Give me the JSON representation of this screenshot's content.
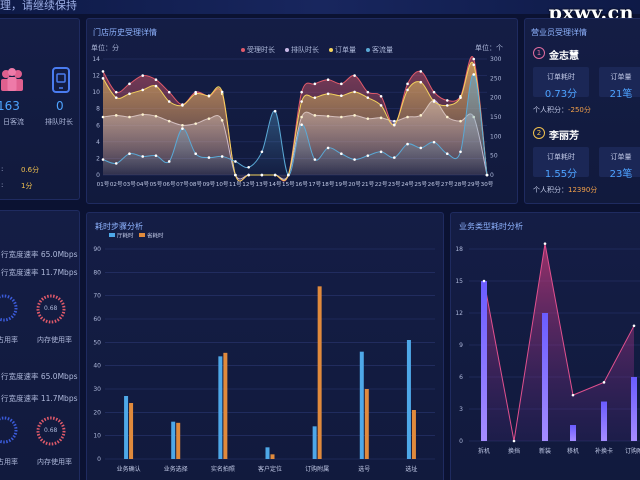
{
  "banner": {
    "text": "理，请继续保持"
  },
  "watermark": {
    "text": "pxwy.cn"
  },
  "left_top": {
    "big_value": "163",
    "big_label": "日客流",
    "queue_value": "0",
    "queue_label": "排队时长",
    "row1_value": "0.6分",
    "row2_value": "1分",
    "icons": {
      "people": "people-icon",
      "phone": "phone-icon"
    }
  },
  "history_chart": {
    "title": "门店历史受理详情",
    "left_unit": "单位：分",
    "right_unit": "单位：个",
    "legend": [
      "受理时长",
      "排队时长",
      "订单量",
      "客流量"
    ],
    "chart_data": {
      "type": "line",
      "categories": [
        "01号",
        "02号",
        "03号",
        "04号",
        "05号",
        "06号",
        "07号",
        "08号",
        "09号",
        "10号",
        "11号",
        "12号",
        "13号",
        "14号",
        "15号",
        "16号",
        "17号",
        "18号",
        "19号",
        "20号",
        "21号",
        "22号",
        "23号",
        "24号",
        "25号",
        "26号",
        "27号",
        "28号",
        "29号",
        "30号"
      ],
      "left_ylim": [
        0,
        14
      ],
      "left_ticks": [
        0,
        2,
        4,
        6,
        8,
        10,
        12,
        14
      ],
      "right_ylim": [
        0,
        300
      ],
      "right_ticks": [
        0,
        50,
        100,
        150,
        200,
        250,
        300
      ],
      "series": [
        {
          "name": "受理时长",
          "axis": "left",
          "color": "#e05a6a",
          "values": [
            12.5,
            10,
            11,
            12,
            11.5,
            10,
            8.5,
            10,
            9.5,
            9.8,
            0,
            0,
            0,
            0,
            0,
            10,
            11,
            11.5,
            11,
            12,
            10,
            9.5,
            6,
            11,
            12.5,
            10,
            9,
            9.5,
            14,
            0
          ]
        },
        {
          "name": "排队时长",
          "axis": "left",
          "color": "#c8b7e6",
          "values": [
            7,
            7.2,
            7,
            7.3,
            7.1,
            6.5,
            6,
            6.2,
            6.8,
            6.6,
            0,
            0,
            0,
            0,
            0,
            7,
            7.2,
            7.1,
            7,
            7.2,
            6.8,
            6.9,
            6.5,
            7,
            7.2,
            9,
            7,
            6.5,
            7,
            0
          ]
        },
        {
          "name": "订单量",
          "axis": "right",
          "color": "#f4d35e",
          "values": [
            250,
            200,
            210,
            220,
            230,
            190,
            180,
            210,
            205,
            215,
            0,
            0,
            0,
            0,
            0,
            190,
            200,
            210,
            205,
            215,
            200,
            180,
            130,
            220,
            240,
            190,
            180,
            200,
            285,
            0
          ]
        },
        {
          "name": "客流量",
          "axis": "right",
          "color": "#5aa9d6",
          "values": [
            40,
            30,
            55,
            48,
            50,
            35,
            120,
            55,
            45,
            48,
            35,
            20,
            60,
            165,
            0,
            130,
            40,
            70,
            55,
            40,
            50,
            60,
            45,
            80,
            70,
            85,
            55,
            60,
            260,
            0
          ]
        }
      ]
    }
  },
  "staff": {
    "title": "营业员受理详情",
    "people": [
      {
        "rank": "1",
        "name": "金志慧",
        "box1_label": "订单耗时",
        "box1_value": "0.73分",
        "box2_label": "订单量",
        "box2_value": "21笔",
        "score_label": "个人积分：",
        "score_value": "-250分"
      },
      {
        "rank": "2",
        "name": "李丽芳",
        "box1_label": "订单耗时",
        "box1_value": "1.55分",
        "box2_label": "订单量",
        "box2_value": "23笔",
        "score_label": "个人积分：",
        "score_value": "12390分"
      }
    ]
  },
  "network": {
    "group1": {
      "down": "行宽度速率 65.0Mbps",
      "up": "行宽度速率 11.7Mbps",
      "gauge_value": "0.68",
      "cpu_label": "占用率",
      "mem_label": "内存使用率"
    },
    "group2": {
      "down": "行宽度速率 65.0Mbps",
      "up": "行宽度速率 11.7Mbps",
      "gauge_value": "0.68",
      "cpu_label": "占用率",
      "mem_label": "内存使用率"
    }
  },
  "steps_chart": {
    "title": "耗时步骤分析",
    "chart_data": {
      "type": "bar",
      "categories": [
        "业务确认",
        "业务选择",
        "实名拍照",
        "客户定位",
        "订购附属",
        "选号",
        "选址"
      ],
      "ylim": [
        0,
        90
      ],
      "yticks": [
        0,
        10,
        20,
        30,
        40,
        50,
        60,
        70,
        80,
        90
      ],
      "series": [
        {
          "name": "厅耗时",
          "color": "#4ea8e8",
          "values": [
            27,
            16,
            44,
            5,
            14,
            46,
            51
          ]
        },
        {
          "name": "省耗时",
          "color": "#e08a3c",
          "values": [
            24,
            15.5,
            45.5,
            2,
            74,
            30,
            21
          ]
        }
      ]
    }
  },
  "biz_chart": {
    "title": "业务类型耗时分析",
    "chart_data": {
      "type": "bar",
      "categories": [
        "拆机",
        "换挡",
        "新装",
        "移机",
        "补换卡",
        "订购附"
      ],
      "ylim": [
        0,
        18
      ],
      "yticks": [
        0,
        3,
        6,
        9,
        12,
        15,
        18
      ],
      "bar_values": [
        15,
        0,
        12,
        1.5,
        3.7,
        6
      ],
      "line_values": [
        15,
        0,
        18.5,
        4.3,
        5.5,
        10.8
      ]
    }
  }
}
